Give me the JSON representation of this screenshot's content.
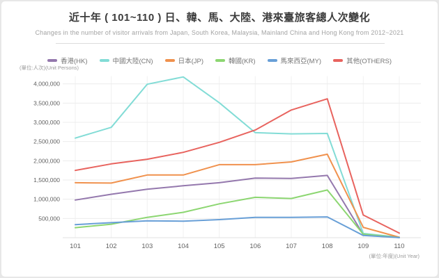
{
  "card": {
    "title": "近十年 ( 101~110 ) 日、韓、馬、大陸、港來臺旅客總人次變化",
    "subtitle": "Changes in the number of visitor arrivals from Japan, South Korea, Malaysia, Mainland China and Hong Kong from 2012~2021"
  },
  "chart_data": {
    "type": "line",
    "title": "近十年 ( 101~110 ) 日、韓、馬、大陸、港來臺旅客總人次變化",
    "subtitle": "Changes in the number of visitor arrivals from Japan, South Korea, Malaysia, Mainland China and Hong Kong from 2012~2021",
    "y_axis_unit_label": "(單位:人次)(Unit Persons)",
    "x_axis_unit_label": "(單位:年度)(Unit Year)",
    "categories": [
      "101",
      "102",
      "103",
      "104",
      "105",
      "106",
      "107",
      "108",
      "109",
      "110"
    ],
    "y_ticks": [
      500000,
      1000000,
      1500000,
      2000000,
      2500000,
      3000000,
      3500000,
      4000000
    ],
    "ylim": [
      0,
      4200000
    ],
    "grid": true,
    "legend_position": "top",
    "series": [
      {
        "code": "hk",
        "name": "香港(HK)",
        "color": "#9478ad",
        "values": [
          980000,
          1130000,
          1260000,
          1350000,
          1430000,
          1550000,
          1540000,
          1620000,
          82000,
          5000
        ]
      },
      {
        "code": "cn",
        "name": "中國大陸(CN)",
        "color": "#82dcd6",
        "values": [
          2590000,
          2870000,
          3990000,
          4180000,
          3510000,
          2730000,
          2700000,
          2710000,
          111000,
          11000
        ]
      },
      {
        "code": "jp",
        "name": "日本(JP)",
        "color": "#f0914d",
        "values": [
          1430000,
          1420000,
          1630000,
          1630000,
          1900000,
          1900000,
          1970000,
          2170000,
          270000,
          10000
        ]
      },
      {
        "code": "kr",
        "name": "韓國(KR)",
        "color": "#8cd671",
        "values": [
          260000,
          350000,
          530000,
          660000,
          880000,
          1050000,
          1020000,
          1240000,
          91000,
          3000
        ]
      },
      {
        "code": "my",
        "name": "馬來西亞(MY)",
        "color": "#689fd7",
        "values": [
          340000,
          390000,
          440000,
          430000,
          470000,
          530000,
          530000,
          540000,
          58000,
          2000
        ]
      },
      {
        "code": "others",
        "name": "其他(OTHERS)",
        "color": "#e8635e",
        "values": [
          1750000,
          1920000,
          2040000,
          2220000,
          2480000,
          2800000,
          3320000,
          3610000,
          590000,
          120000
        ]
      }
    ],
    "grid_color_horizontal": "#ececec",
    "grid_color_vertical": "#f1f1f1",
    "axis_baseline_color": "#e2e2e2",
    "tick_label_color": "#5f5f5f"
  }
}
